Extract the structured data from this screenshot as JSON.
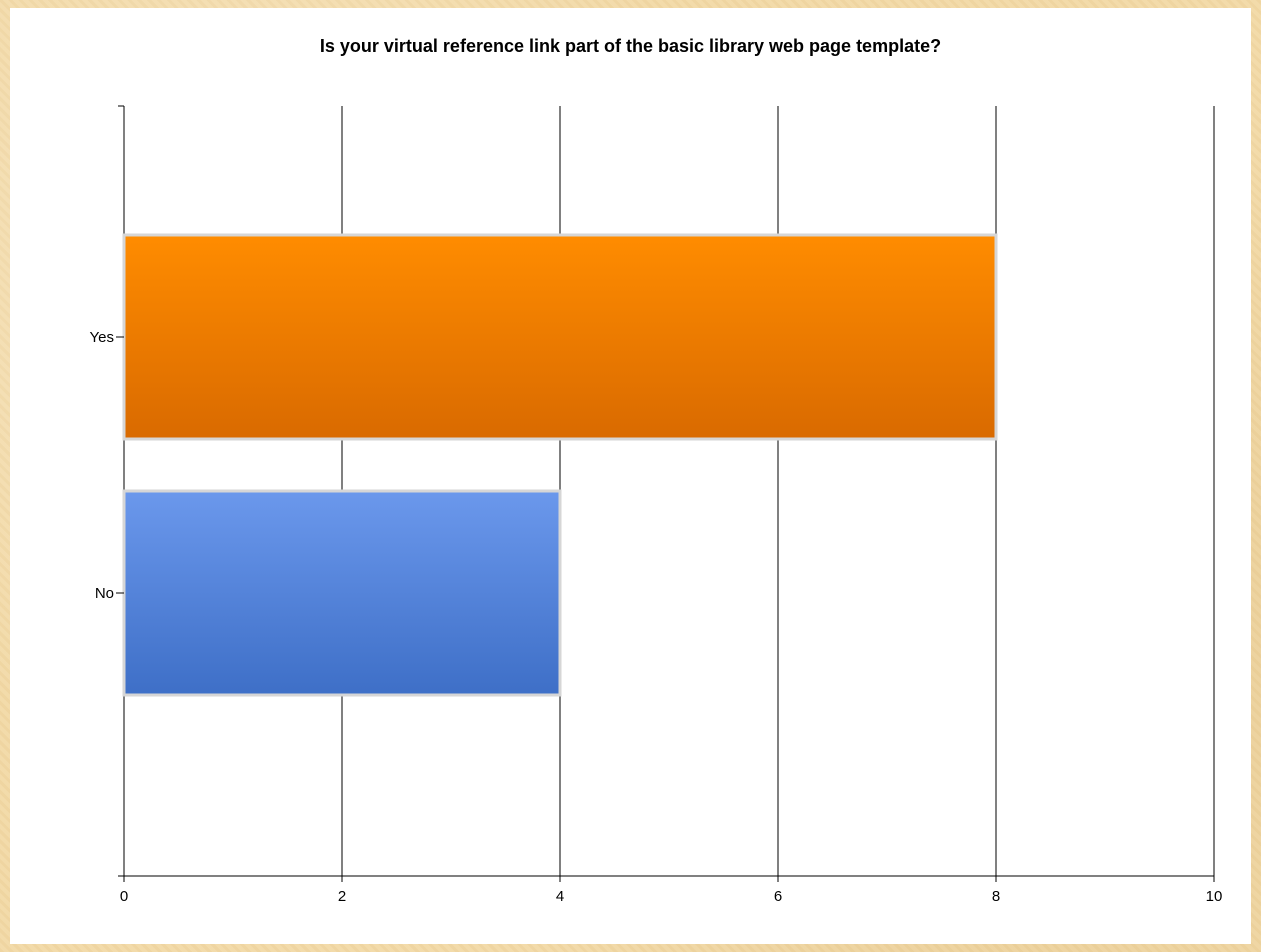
{
  "chart_data": {
    "type": "bar",
    "orientation": "horizontal",
    "title": "Is your virtual reference link part of the basic library web page template?",
    "categories": [
      "Yes",
      "No"
    ],
    "values": [
      8,
      4
    ],
    "bar_colors": [
      {
        "top": "#ff8c00",
        "bottom": "#d96a00"
      },
      {
        "top": "#6b98ec",
        "bottom": "#3e6fc7"
      }
    ],
    "xlim": [
      0,
      10
    ],
    "xticks": [
      "0",
      "2",
      "4",
      "6",
      "8",
      "10"
    ],
    "grid": "vertical",
    "legend": "none"
  }
}
